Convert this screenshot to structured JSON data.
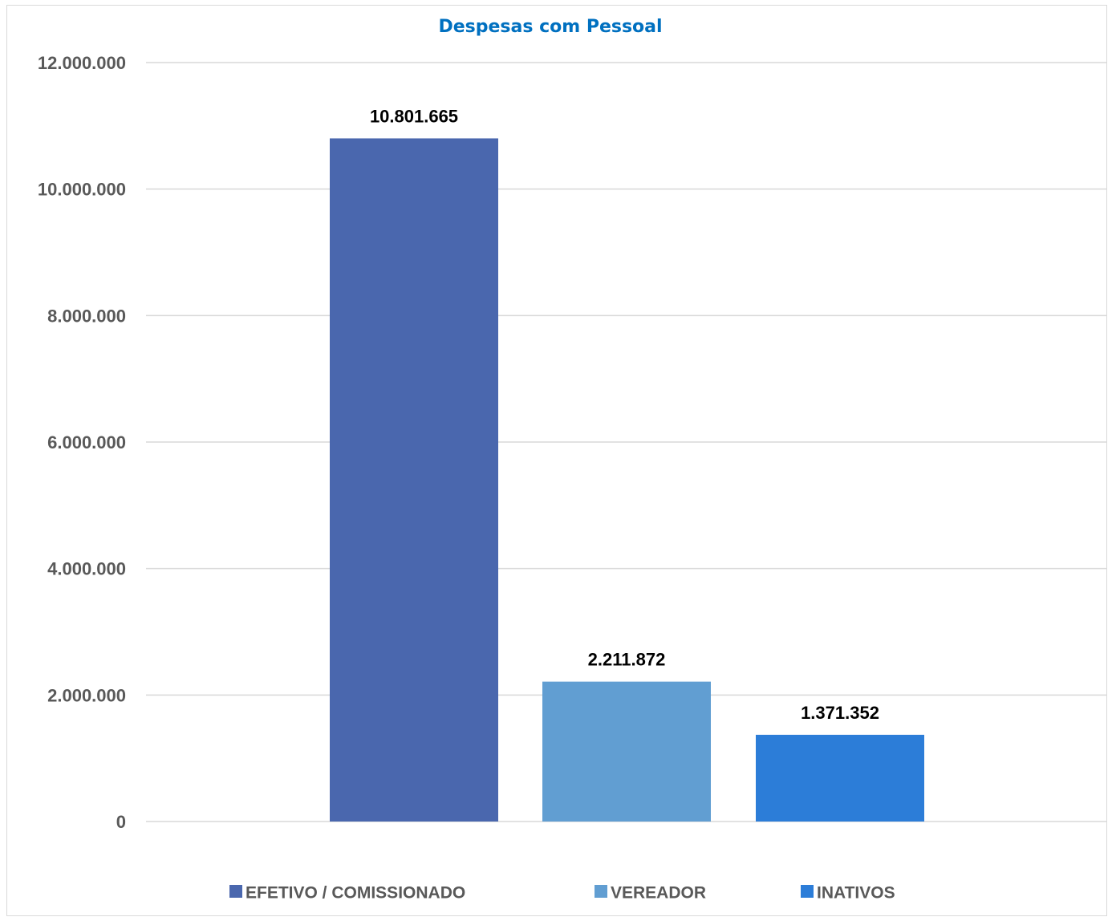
{
  "chart_data": {
    "type": "bar",
    "title": "Despesas com Pessoal",
    "xlabel": "",
    "ylabel": "",
    "ylim": [
      0,
      12000000
    ],
    "yticks": [
      0,
      2000000,
      4000000,
      6000000,
      8000000,
      10000000,
      12000000
    ],
    "ytick_labels": [
      "0",
      "2.000.000",
      "4.000.000",
      "6.000.000",
      "8.000.000",
      "10.000.000",
      "12.000.000"
    ],
    "grid": true,
    "legend_position": "bottom",
    "series": [
      {
        "name": "EFETIVO / COMISSIONADO",
        "value": 10801665,
        "label": "10.801.665",
        "color": "#4a67ae"
      },
      {
        "name": "VEREADOR",
        "value": 2211872,
        "label": "2.211.872",
        "color": "#619ed2"
      },
      {
        "name": "INATIVOS",
        "value": 1371352,
        "label": "1.371.352",
        "color": "#2c7dd8"
      }
    ]
  }
}
